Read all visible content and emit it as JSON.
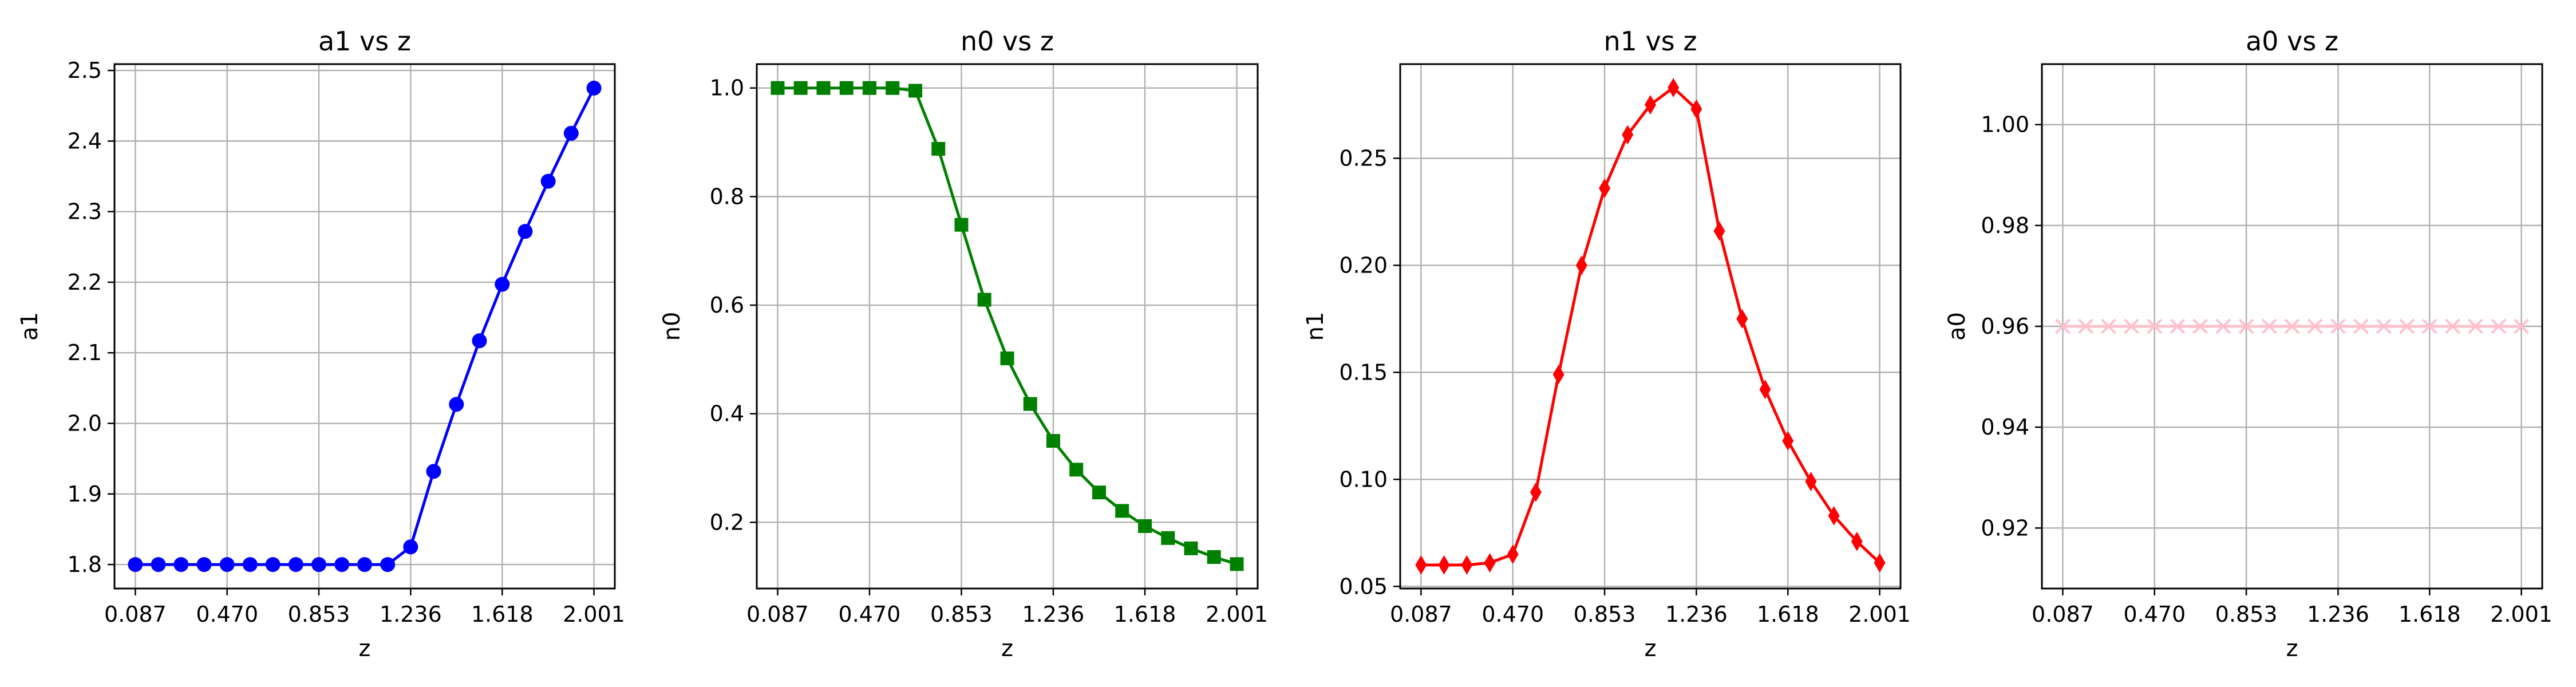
{
  "chart_data": [
    {
      "type": "line",
      "title": "a1 vs z",
      "xlabel": "z",
      "ylabel": "a1",
      "xlim": [
        0.0,
        2.088
      ],
      "ylim": [
        1.766,
        2.509
      ],
      "xticks": [
        0.087,
        0.47,
        0.853,
        1.236,
        1.618,
        2.001
      ],
      "xtick_labels": [
        "0.087",
        "0.470",
        "0.853",
        "1.236",
        "1.618",
        "2.001"
      ],
      "yticks": [
        1.8,
        1.9,
        2.0,
        2.1,
        2.2,
        2.3,
        2.4,
        2.5
      ],
      "ytick_labels": [
        "1.8",
        "1.9",
        "2.0",
        "2.1",
        "2.2",
        "2.3",
        "2.4",
        "2.5"
      ],
      "grid": true,
      "series": [
        {
          "color": "#0000ff",
          "marker": "circle",
          "x": [
            0.087,
            0.183,
            0.278,
            0.374,
            0.47,
            0.566,
            0.661,
            0.757,
            0.853,
            0.949,
            1.044,
            1.14,
            1.236,
            1.332,
            1.427,
            1.523,
            1.618,
            1.714,
            1.81,
            1.906,
            2.001
          ],
          "y": [
            1.8,
            1.8,
            1.8,
            1.8,
            1.8,
            1.8,
            1.8,
            1.8,
            1.8,
            1.8,
            1.8,
            1.8,
            1.825,
            1.932,
            2.027,
            2.117,
            2.197,
            2.272,
            2.343,
            2.411,
            2.475
          ]
        }
      ]
    },
    {
      "type": "line",
      "title": "n0 vs z",
      "xlabel": "z",
      "ylabel": "n0",
      "xlim": [
        0.0,
        2.088
      ],
      "ylim": [
        0.078,
        1.044
      ],
      "xticks": [
        0.087,
        0.47,
        0.853,
        1.236,
        1.618,
        2.001
      ],
      "xtick_labels": [
        "0.087",
        "0.470",
        "0.853",
        "1.236",
        "1.618",
        "2.001"
      ],
      "yticks": [
        0.2,
        0.4,
        0.6,
        0.8,
        1.0
      ],
      "ytick_labels": [
        "0.2",
        "0.4",
        "0.6",
        "0.8",
        "1.0"
      ],
      "grid": true,
      "series": [
        {
          "color": "#008000",
          "marker": "square",
          "x": [
            0.087,
            0.183,
            0.278,
            0.374,
            0.47,
            0.566,
            0.661,
            0.757,
            0.853,
            0.949,
            1.044,
            1.14,
            1.236,
            1.332,
            1.427,
            1.523,
            1.618,
            1.714,
            1.81,
            1.906,
            2.001
          ],
          "y": [
            1.0,
            1.0,
            1.0,
            1.0,
            1.0,
            1.0,
            0.995,
            0.888,
            0.748,
            0.61,
            0.502,
            0.418,
            0.35,
            0.297,
            0.255,
            0.221,
            0.193,
            0.171,
            0.152,
            0.136,
            0.123
          ]
        }
      ]
    },
    {
      "type": "line",
      "title": "n1 vs z",
      "xlabel": "z",
      "ylabel": "n1",
      "xlim": [
        0.0,
        2.088
      ],
      "ylim": [
        0.049,
        0.294
      ],
      "xticks": [
        0.087,
        0.47,
        0.853,
        1.236,
        1.618,
        2.001
      ],
      "xtick_labels": [
        "0.087",
        "0.470",
        "0.853",
        "1.236",
        "1.618",
        "2.001"
      ],
      "yticks": [
        0.05,
        0.1,
        0.15,
        0.2,
        0.25
      ],
      "ytick_labels": [
        "0.05",
        "0.10",
        "0.15",
        "0.20",
        "0.25"
      ],
      "grid": true,
      "series": [
        {
          "color": "#ff0000",
          "marker": "thin-diamond",
          "x": [
            0.087,
            0.183,
            0.278,
            0.374,
            0.47,
            0.566,
            0.661,
            0.757,
            0.853,
            0.949,
            1.044,
            1.14,
            1.236,
            1.332,
            1.427,
            1.523,
            1.618,
            1.714,
            1.81,
            1.906,
            2.001
          ],
          "y": [
            0.06,
            0.06,
            0.06,
            0.061,
            0.065,
            0.094,
            0.149,
            0.2,
            0.236,
            0.261,
            0.275,
            0.283,
            0.273,
            0.216,
            0.175,
            0.142,
            0.118,
            0.099,
            0.083,
            0.071,
            0.061
          ]
        }
      ]
    },
    {
      "type": "line",
      "title": "a0 vs z",
      "xlabel": "z",
      "ylabel": "a0",
      "xlim": [
        0.0,
        2.088
      ],
      "ylim": [
        0.908,
        1.012
      ],
      "xticks": [
        0.087,
        0.47,
        0.853,
        1.236,
        1.618,
        2.001
      ],
      "xtick_labels": [
        "0.087",
        "0.470",
        "0.853",
        "1.236",
        "1.618",
        "2.001"
      ],
      "yticks": [
        0.92,
        0.94,
        0.96,
        0.98,
        1.0
      ],
      "ytick_labels": [
        "0.92",
        "0.94",
        "0.96",
        "0.98",
        "1.00"
      ],
      "grid": true,
      "series": [
        {
          "color": "#ffc0cb",
          "marker": "x",
          "x": [
            0.087,
            0.183,
            0.278,
            0.374,
            0.47,
            0.566,
            0.661,
            0.757,
            0.853,
            0.949,
            1.044,
            1.14,
            1.236,
            1.332,
            1.427,
            1.523,
            1.618,
            1.714,
            1.81,
            1.906,
            2.001
          ],
          "y": [
            0.96,
            0.96,
            0.96,
            0.96,
            0.96,
            0.96,
            0.96,
            0.96,
            0.96,
            0.96,
            0.96,
            0.96,
            0.96,
            0.96,
            0.96,
            0.96,
            0.96,
            0.96,
            0.96,
            0.96,
            0.96
          ]
        }
      ]
    }
  ]
}
